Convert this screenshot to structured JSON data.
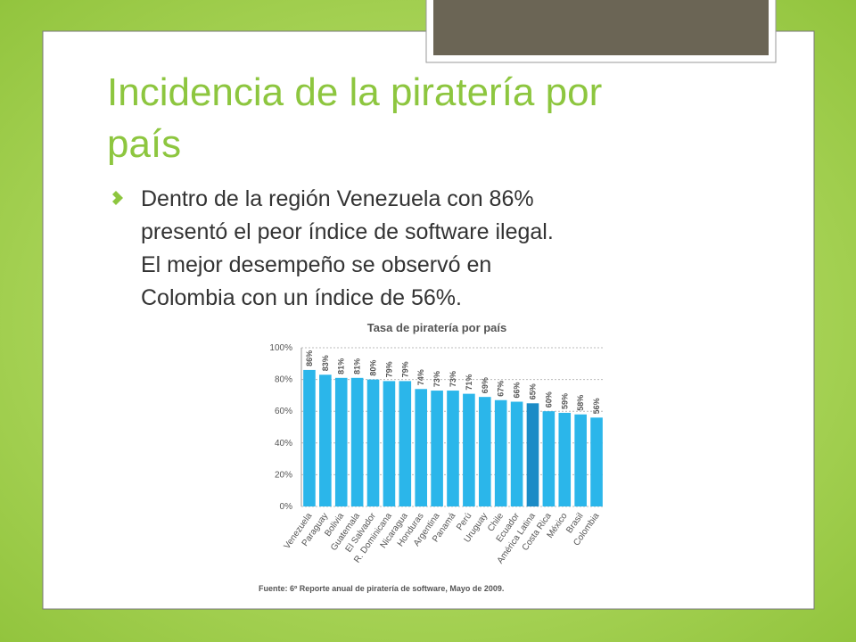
{
  "slide": {
    "title_lines": [
      "Incidencia de la piratería por",
      "país"
    ],
    "bullet_lines": [
      "Dentro de la región Venezuela con 86%",
      "presentó el peor índice de software ilegal.",
      "El mejor desempeño se observó en",
      "Colombia con un índice de 56%."
    ]
  },
  "chart_data": {
    "type": "bar",
    "title": "Tasa de piratería por país",
    "categories": [
      "Venezuela",
      "Paraguay",
      "Bolivia",
      "Guatemala",
      "El Salvador",
      "R. Dominicana",
      "Nicaragua",
      "Honduras",
      "Argentina",
      "Panamá",
      "Perú",
      "Uruguay",
      "Chile",
      "Ecuador",
      "América Latina",
      "Costa Rica",
      "México",
      "Brasil",
      "Colombia"
    ],
    "values": [
      86,
      83,
      81,
      81,
      80,
      79,
      79,
      74,
      73,
      73,
      71,
      69,
      67,
      66,
      65,
      60,
      59,
      58,
      56
    ],
    "value_labels": [
      "86%",
      "83%",
      "81%",
      "81%",
      "80%",
      "79%",
      "79%",
      "74%",
      "73%",
      "73%",
      "71%",
      "69%",
      "67%",
      "66%",
      "65%",
      "60%",
      "59%",
      "58%",
      "56%"
    ],
    "colors": [
      "#2bb6ea",
      "#2bb6ea",
      "#2bb6ea",
      "#2bb6ea",
      "#2bb6ea",
      "#2bb6ea",
      "#2bb6ea",
      "#2bb6ea",
      "#2bb6ea",
      "#2bb6ea",
      "#2bb6ea",
      "#2bb6ea",
      "#2bb6ea",
      "#2bb6ea",
      "#1b8bc6",
      "#2bb6ea",
      "#2bb6ea",
      "#2bb6ea",
      "#2bb6ea"
    ],
    "ylim": [
      0,
      100
    ],
    "yticks": [
      {
        "value": 0,
        "label": "0%"
      },
      {
        "value": 20,
        "label": "20%"
      },
      {
        "value": 40,
        "label": "40%"
      },
      {
        "value": 60,
        "label": "60%"
      },
      {
        "value": 80,
        "label": "80%"
      },
      {
        "value": 100,
        "label": "100%"
      }
    ],
    "grid": true,
    "source": "Fuente: 6º Reporte anual de piratería de software, Mayo de 2009."
  }
}
